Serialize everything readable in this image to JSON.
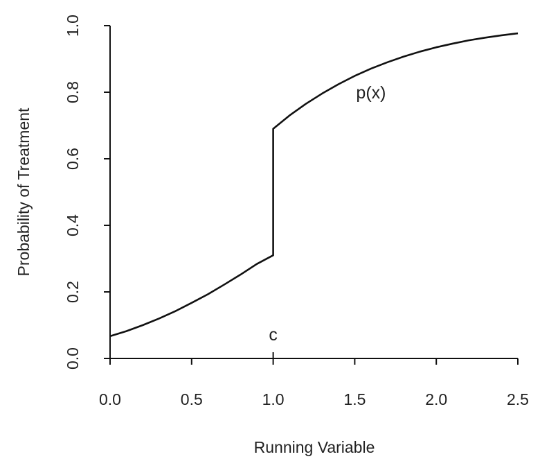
{
  "chart_data": {
    "type": "line",
    "xlabel": "Running Variable",
    "ylabel": "Probability of Treatment",
    "xlim": [
      0,
      2.5
    ],
    "ylim": [
      0,
      1
    ],
    "x_ticks": [
      0.0,
      0.5,
      1.0,
      1.5,
      2.0,
      2.5
    ],
    "x_tick_labels": [
      "0.0",
      "0.5",
      "1.0",
      "1.5",
      "2.0",
      "2.5"
    ],
    "y_ticks": [
      0.0,
      0.2,
      0.4,
      0.6,
      0.8,
      1.0
    ],
    "y_tick_labels": [
      "0.0",
      "0.2",
      "0.4",
      "0.6",
      "0.8",
      "1.0"
    ],
    "grid": false,
    "cutoff": 1.0,
    "cutoff_label": "c",
    "series": [
      {
        "label": "p(x)",
        "label_at": [
          1.6,
          0.8
        ],
        "x": [
          0.0,
          0.1,
          0.2,
          0.3,
          0.4,
          0.5,
          0.6,
          0.7,
          0.8,
          0.9,
          1.0,
          1.0,
          1.1,
          1.2,
          1.3,
          1.4,
          1.5,
          1.6,
          1.7,
          1.8,
          1.9,
          2.0,
          2.1,
          2.2,
          2.3,
          2.4,
          2.5
        ],
        "y": [
          0.067,
          0.082,
          0.1,
          0.12,
          0.142,
          0.167,
          0.193,
          0.222,
          0.252,
          0.284,
          0.31,
          0.69,
          0.73,
          0.765,
          0.796,
          0.824,
          0.849,
          0.871,
          0.89,
          0.907,
          0.922,
          0.935,
          0.946,
          0.956,
          0.964,
          0.971,
          0.977
        ]
      }
    ]
  }
}
